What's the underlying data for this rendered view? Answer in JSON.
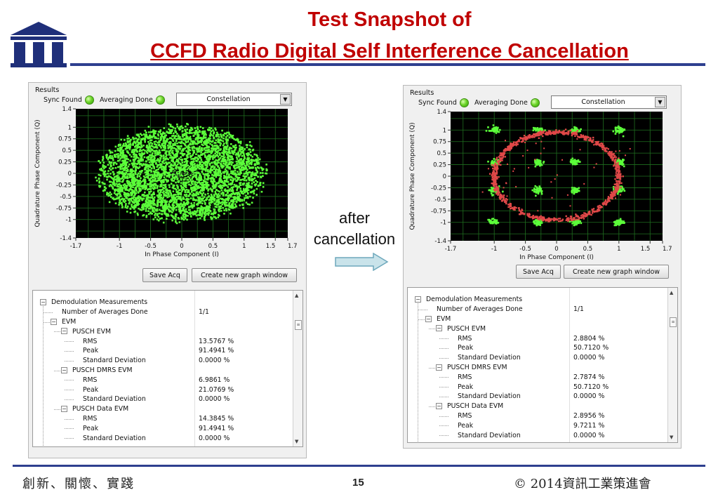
{
  "header": {
    "title_line1": "Test Snapshot of",
    "title_line2": "CCFD Radio Digital Self Interference Cancellation"
  },
  "annotation": {
    "line1": "after",
    "line2": "cancellation"
  },
  "footer": {
    "left": "創新、關懷、實踐",
    "page": "15",
    "right": "© 2014資訊工業策進會"
  },
  "colors": {
    "title_red": "#c00000",
    "rule_blue": "#2e3f8f",
    "point_green": "#5cff3a",
    "point_red": "#e04848",
    "plot_bg": "#000000",
    "grid": "#1f6f1f"
  },
  "left_panel": {
    "results_label": "Results",
    "sync_found_label": "Sync Found",
    "averaging_done_label": "Averaging Done",
    "view_select": "Constellation",
    "save_label": "Save Acq",
    "new_graph_label": "Create new graph window",
    "tree": [
      {
        "name": "Demodulation Measurements",
        "value": ""
      },
      {
        "name": "Number of Averages Done",
        "value": "1/1"
      },
      {
        "name": "EVM",
        "value": ""
      },
      {
        "name": "PUSCH EVM",
        "value": ""
      },
      {
        "name": "RMS",
        "value": "13.5767 %"
      },
      {
        "name": "Peak",
        "value": "91.4941 %"
      },
      {
        "name": "Standard Deviation",
        "value": "0.0000 %"
      },
      {
        "name": "PUSCH DMRS EVM",
        "value": ""
      },
      {
        "name": "RMS",
        "value": "6.9861 %"
      },
      {
        "name": "Peak",
        "value": "21.0769 %"
      },
      {
        "name": "Standard Deviation",
        "value": "0.0000 %"
      },
      {
        "name": "PUSCH Data EVM",
        "value": ""
      },
      {
        "name": "RMS",
        "value": "14.3845 %"
      },
      {
        "name": "Peak",
        "value": "91.4941 %"
      },
      {
        "name": "Standard Deviation",
        "value": "0.0000 %"
      }
    ]
  },
  "right_panel": {
    "results_label": "Results",
    "sync_found_label": "Sync Found",
    "averaging_done_label": "Averaging Done",
    "view_select": "Constellation",
    "save_label": "Save Acq",
    "new_graph_label": "Create new graph window",
    "tree": [
      {
        "name": "Demodulation Measurements",
        "value": ""
      },
      {
        "name": "Number of Averages Done",
        "value": "1/1"
      },
      {
        "name": "EVM",
        "value": ""
      },
      {
        "name": "PUSCH EVM",
        "value": ""
      },
      {
        "name": "RMS",
        "value": "2.8804 %"
      },
      {
        "name": "Peak",
        "value": "50.7120 %"
      },
      {
        "name": "Standard Deviation",
        "value": "0.0000 %"
      },
      {
        "name": "PUSCH DMRS EVM",
        "value": ""
      },
      {
        "name": "RMS",
        "value": "2.7874 %"
      },
      {
        "name": "Peak",
        "value": "50.7120 %"
      },
      {
        "name": "Standard Deviation",
        "value": "0.0000 %"
      },
      {
        "name": "PUSCH Data EVM",
        "value": ""
      },
      {
        "name": "RMS",
        "value": "2.8956 %"
      },
      {
        "name": "Peak",
        "value": "9.7211 %"
      },
      {
        "name": "Standard Deviation",
        "value": "0.0000 %"
      }
    ]
  },
  "chart_data": [
    {
      "type": "scatter",
      "title": "",
      "xlabel": "In Phase Component (I)",
      "ylabel": "Quadrature Phase Component (Q)",
      "xlim": [
        -1.7,
        1.7
      ],
      "ylim": [
        -1.4,
        1.4
      ],
      "x_ticks": [
        "-1.7",
        "-1",
        "-0.5",
        "0",
        "0.5",
        "1",
        "1.5",
        "1.7"
      ],
      "y_ticks": [
        "1.4",
        "1",
        "0.75",
        "0.5",
        "0.25",
        "0",
        "-0.25",
        "-0.5",
        "-0.75",
        "-1",
        "-1.4"
      ],
      "grid": true,
      "series": [
        {
          "description_color": "green",
          "cloud": {
            "center": [
              0,
              0
            ],
            "radius_x": 1.35,
            "radius_y": 1.05
          }
        }
      ]
    },
    {
      "type": "scatter",
      "title": "",
      "xlabel": "In Phase Component (I)",
      "ylabel": "Quadrature Phase Component (Q)",
      "xlim": [
        -1.7,
        1.7
      ],
      "ylim": [
        -1.4,
        1.4
      ],
      "x_ticks": [
        "-1.7",
        "-1",
        "-0.5",
        "0",
        "0.5",
        "1",
        "1.5",
        "1.7"
      ],
      "y_ticks": [
        "1.4",
        "1",
        "0.75",
        "0.5",
        "0.25",
        "0",
        "-0.25",
        "-0.5",
        "-0.75",
        "-1",
        "-1.4"
      ],
      "grid": true,
      "series": [
        {
          "description_color": "green",
          "constellation_points": {
            "i_levels": [
              -1.0,
              -0.3,
              0.3,
              1.0
            ],
            "q_levels": [
              1.0,
              0.3,
              -0.3,
              -1.0
            ]
          }
        },
        {
          "description_color": "red",
          "ring": {
            "center": [
              0,
              0
            ],
            "radius_i": 1.0,
            "radius_q": 0.95
          }
        }
      ]
    }
  ]
}
